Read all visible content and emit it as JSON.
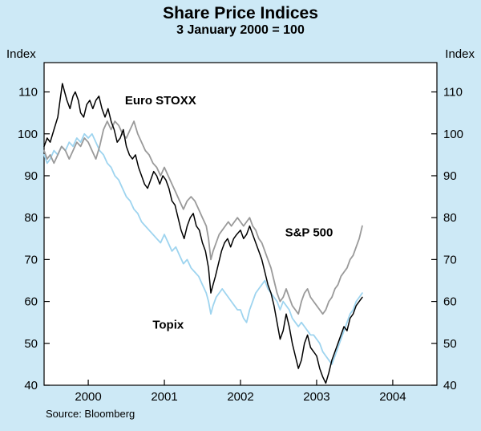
{
  "title": "Share Price Indices",
  "subtitle": "3 January 2000 = 100",
  "axis_unit_left": "Index",
  "axis_unit_right": "Index",
  "source": "Source: Bloomberg",
  "colors": {
    "background": "#cde9f6",
    "plot_background": "#ffffff",
    "frame": "#000000",
    "euro_stoxx": "#000000",
    "sp500": "#9a9a9a",
    "topix": "#9ed4ef"
  },
  "chart_data": {
    "type": "line",
    "title": "Share Price Indices",
    "subtitle": "3 January 2000 = 100",
    "xlabel": "",
    "ylabel": "Index",
    "grid": false,
    "legend_position": "inline-annotations",
    "ylim": [
      40,
      117
    ],
    "yticks": [
      40,
      50,
      60,
      70,
      80,
      90,
      100,
      110
    ],
    "xlim": [
      1999.42,
      2004.58
    ],
    "xticks": [
      2000,
      2001,
      2002,
      2003,
      2004
    ],
    "series": [
      {
        "name": "Topix",
        "color": "#9ed4ef",
        "width": 1.8,
        "points": [
          [
            1999.42,
            95
          ],
          [
            1999.46,
            93
          ],
          [
            1999.5,
            94
          ],
          [
            1999.55,
            96
          ],
          [
            1999.6,
            95
          ],
          [
            1999.65,
            97
          ],
          [
            1999.7,
            96
          ],
          [
            1999.75,
            98
          ],
          [
            1999.8,
            97
          ],
          [
            1999.85,
            99
          ],
          [
            1999.9,
            98
          ],
          [
            1999.95,
            100
          ],
          [
            2000.0,
            99
          ],
          [
            2000.05,
            100
          ],
          [
            2000.1,
            98
          ],
          [
            2000.15,
            96
          ],
          [
            2000.2,
            95
          ],
          [
            2000.25,
            93
          ],
          [
            2000.3,
            92
          ],
          [
            2000.35,
            90
          ],
          [
            2000.4,
            89
          ],
          [
            2000.45,
            87
          ],
          [
            2000.5,
            85
          ],
          [
            2000.55,
            84
          ],
          [
            2000.6,
            82
          ],
          [
            2000.65,
            81
          ],
          [
            2000.7,
            79
          ],
          [
            2000.75,
            78
          ],
          [
            2000.8,
            77
          ],
          [
            2000.85,
            76
          ],
          [
            2000.9,
            75
          ],
          [
            2000.95,
            74
          ],
          [
            2001.0,
            76
          ],
          [
            2001.05,
            74
          ],
          [
            2001.1,
            72
          ],
          [
            2001.15,
            73
          ],
          [
            2001.2,
            71
          ],
          [
            2001.25,
            69
          ],
          [
            2001.3,
            70
          ],
          [
            2001.35,
            68
          ],
          [
            2001.4,
            67
          ],
          [
            2001.45,
            66
          ],
          [
            2001.5,
            64
          ],
          [
            2001.55,
            62
          ],
          [
            2001.58,
            60
          ],
          [
            2001.61,
            57
          ],
          [
            2001.64,
            59
          ],
          [
            2001.68,
            61
          ],
          [
            2001.72,
            62
          ],
          [
            2001.76,
            63
          ],
          [
            2001.8,
            62
          ],
          [
            2001.84,
            61
          ],
          [
            2001.88,
            60
          ],
          [
            2001.92,
            59
          ],
          [
            2001.96,
            58
          ],
          [
            2002.0,
            58
          ],
          [
            2002.04,
            56
          ],
          [
            2002.08,
            55
          ],
          [
            2002.12,
            58
          ],
          [
            2002.16,
            60
          ],
          [
            2002.2,
            62
          ],
          [
            2002.24,
            63
          ],
          [
            2002.28,
            64
          ],
          [
            2002.32,
            65
          ],
          [
            2002.36,
            63
          ],
          [
            2002.4,
            62
          ],
          [
            2002.44,
            61
          ],
          [
            2002.48,
            60
          ],
          [
            2002.52,
            58
          ],
          [
            2002.56,
            60
          ],
          [
            2002.6,
            59
          ],
          [
            2002.64,
            58
          ],
          [
            2002.68,
            56
          ],
          [
            2002.72,
            55
          ],
          [
            2002.76,
            54
          ],
          [
            2002.8,
            55
          ],
          [
            2002.84,
            54
          ],
          [
            2002.88,
            53
          ],
          [
            2002.92,
            52
          ],
          [
            2002.96,
            52
          ],
          [
            2003.0,
            51
          ],
          [
            2003.04,
            50
          ],
          [
            2003.08,
            48
          ],
          [
            2003.12,
            47
          ],
          [
            2003.16,
            46
          ],
          [
            2003.2,
            45
          ],
          [
            2003.24,
            47
          ],
          [
            2003.28,
            49
          ],
          [
            2003.32,
            51
          ],
          [
            2003.36,
            53
          ],
          [
            2003.4,
            55
          ],
          [
            2003.44,
            57
          ],
          [
            2003.48,
            58
          ],
          [
            2003.52,
            60
          ],
          [
            2003.56,
            61
          ],
          [
            2003.6,
            62
          ]
        ]
      },
      {
        "name": "S&P 500",
        "color": "#9a9a9a",
        "width": 1.8,
        "points": [
          [
            1999.42,
            96
          ],
          [
            1999.46,
            94
          ],
          [
            1999.5,
            95
          ],
          [
            1999.55,
            93
          ],
          [
            1999.6,
            95
          ],
          [
            1999.65,
            97
          ],
          [
            1999.7,
            96
          ],
          [
            1999.75,
            94
          ],
          [
            1999.8,
            96
          ],
          [
            1999.85,
            98
          ],
          [
            1999.9,
            97
          ],
          [
            1999.95,
            99
          ],
          [
            2000.0,
            98
          ],
          [
            2000.05,
            96
          ],
          [
            2000.1,
            94
          ],
          [
            2000.15,
            97
          ],
          [
            2000.2,
            101
          ],
          [
            2000.25,
            103
          ],
          [
            2000.3,
            101
          ],
          [
            2000.35,
            103
          ],
          [
            2000.4,
            102
          ],
          [
            2000.45,
            100
          ],
          [
            2000.5,
            99
          ],
          [
            2000.55,
            101
          ],
          [
            2000.6,
            103
          ],
          [
            2000.65,
            100
          ],
          [
            2000.7,
            98
          ],
          [
            2000.75,
            96
          ],
          [
            2000.8,
            95
          ],
          [
            2000.85,
            93
          ],
          [
            2000.9,
            92
          ],
          [
            2000.95,
            90
          ],
          [
            2001.0,
            92
          ],
          [
            2001.05,
            90
          ],
          [
            2001.1,
            88
          ],
          [
            2001.15,
            86
          ],
          [
            2001.2,
            84
          ],
          [
            2001.25,
            82
          ],
          [
            2001.3,
            84
          ],
          [
            2001.35,
            85
          ],
          [
            2001.4,
            84
          ],
          [
            2001.45,
            82
          ],
          [
            2001.5,
            80
          ],
          [
            2001.55,
            78
          ],
          [
            2001.58,
            75
          ],
          [
            2001.61,
            70
          ],
          [
            2001.64,
            72
          ],
          [
            2001.68,
            74
          ],
          [
            2001.72,
            76
          ],
          [
            2001.76,
            77
          ],
          [
            2001.8,
            78
          ],
          [
            2001.84,
            79
          ],
          [
            2001.88,
            78
          ],
          [
            2001.92,
            79
          ],
          [
            2001.96,
            80
          ],
          [
            2002.0,
            79
          ],
          [
            2002.04,
            78
          ],
          [
            2002.08,
            79
          ],
          [
            2002.12,
            80
          ],
          [
            2002.16,
            78
          ],
          [
            2002.2,
            77
          ],
          [
            2002.24,
            75
          ],
          [
            2002.28,
            74
          ],
          [
            2002.32,
            72
          ],
          [
            2002.36,
            70
          ],
          [
            2002.4,
            68
          ],
          [
            2002.44,
            65
          ],
          [
            2002.48,
            62
          ],
          [
            2002.52,
            60
          ],
          [
            2002.56,
            61
          ],
          [
            2002.6,
            63
          ],
          [
            2002.64,
            61
          ],
          [
            2002.68,
            59
          ],
          [
            2002.72,
            58
          ],
          [
            2002.76,
            57
          ],
          [
            2002.8,
            60
          ],
          [
            2002.84,
            62
          ],
          [
            2002.88,
            63
          ],
          [
            2002.92,
            61
          ],
          [
            2002.96,
            60
          ],
          [
            2003.0,
            59
          ],
          [
            2003.04,
            58
          ],
          [
            2003.08,
            57
          ],
          [
            2003.12,
            58
          ],
          [
            2003.16,
            60
          ],
          [
            2003.2,
            61
          ],
          [
            2003.24,
            63
          ],
          [
            2003.28,
            64
          ],
          [
            2003.32,
            66
          ],
          [
            2003.36,
            67
          ],
          [
            2003.4,
            68
          ],
          [
            2003.44,
            70
          ],
          [
            2003.48,
            71
          ],
          [
            2003.52,
            73
          ],
          [
            2003.56,
            75
          ],
          [
            2003.6,
            78
          ]
        ]
      },
      {
        "name": "Euro STOXX",
        "color": "#000000",
        "width": 1.5,
        "points": [
          [
            1999.42,
            97
          ],
          [
            1999.46,
            99
          ],
          [
            1999.5,
            98
          ],
          [
            1999.55,
            101
          ],
          [
            1999.6,
            104
          ],
          [
            1999.63,
            108
          ],
          [
            1999.66,
            112
          ],
          [
            1999.69,
            110
          ],
          [
            1999.72,
            108
          ],
          [
            1999.76,
            106
          ],
          [
            1999.8,
            109
          ],
          [
            1999.83,
            110
          ],
          [
            1999.87,
            108
          ],
          [
            1999.9,
            105
          ],
          [
            1999.94,
            104
          ],
          [
            1999.98,
            107
          ],
          [
            2000.02,
            108
          ],
          [
            2000.06,
            106
          ],
          [
            2000.1,
            108
          ],
          [
            2000.14,
            109
          ],
          [
            2000.18,
            106
          ],
          [
            2000.22,
            104
          ],
          [
            2000.26,
            106
          ],
          [
            2000.3,
            103
          ],
          [
            2000.34,
            101
          ],
          [
            2000.38,
            98
          ],
          [
            2000.42,
            99
          ],
          [
            2000.46,
            101
          ],
          [
            2000.5,
            97
          ],
          [
            2000.54,
            95
          ],
          [
            2000.58,
            94
          ],
          [
            2000.62,
            95
          ],
          [
            2000.66,
            92
          ],
          [
            2000.7,
            90
          ],
          [
            2000.74,
            88
          ],
          [
            2000.78,
            87
          ],
          [
            2000.82,
            89
          ],
          [
            2000.86,
            91
          ],
          [
            2000.9,
            90
          ],
          [
            2000.94,
            88
          ],
          [
            2000.98,
            90
          ],
          [
            2001.02,
            89
          ],
          [
            2001.06,
            87
          ],
          [
            2001.1,
            84
          ],
          [
            2001.14,
            83
          ],
          [
            2001.18,
            80
          ],
          [
            2001.22,
            77
          ],
          [
            2001.26,
            75
          ],
          [
            2001.3,
            78
          ],
          [
            2001.34,
            80
          ],
          [
            2001.38,
            81
          ],
          [
            2001.42,
            78
          ],
          [
            2001.46,
            77
          ],
          [
            2001.5,
            74
          ],
          [
            2001.54,
            72
          ],
          [
            2001.58,
            68
          ],
          [
            2001.61,
            62
          ],
          [
            2001.64,
            64
          ],
          [
            2001.67,
            66
          ],
          [
            2001.71,
            69
          ],
          [
            2001.75,
            72
          ],
          [
            2001.79,
            74
          ],
          [
            2001.83,
            75
          ],
          [
            2001.87,
            73
          ],
          [
            2001.91,
            75
          ],
          [
            2001.95,
            76
          ],
          [
            2002.0,
            77
          ],
          [
            2002.04,
            75
          ],
          [
            2002.08,
            76
          ],
          [
            2002.12,
            78
          ],
          [
            2002.16,
            76
          ],
          [
            2002.2,
            74
          ],
          [
            2002.24,
            72
          ],
          [
            2002.28,
            70
          ],
          [
            2002.32,
            67
          ],
          [
            2002.36,
            64
          ],
          [
            2002.4,
            62
          ],
          [
            2002.44,
            59
          ],
          [
            2002.48,
            55
          ],
          [
            2002.52,
            51
          ],
          [
            2002.56,
            53
          ],
          [
            2002.6,
            57
          ],
          [
            2002.64,
            54
          ],
          [
            2002.68,
            50
          ],
          [
            2002.72,
            47
          ],
          [
            2002.76,
            44
          ],
          [
            2002.8,
            46
          ],
          [
            2002.84,
            50
          ],
          [
            2002.88,
            52
          ],
          [
            2002.92,
            49
          ],
          [
            2002.96,
            48
          ],
          [
            2003.0,
            47
          ],
          [
            2003.04,
            44
          ],
          [
            2003.08,
            42
          ],
          [
            2003.12,
            40.5
          ],
          [
            2003.16,
            43
          ],
          [
            2003.2,
            46
          ],
          [
            2003.24,
            48
          ],
          [
            2003.28,
            50
          ],
          [
            2003.32,
            52
          ],
          [
            2003.36,
            54
          ],
          [
            2003.4,
            53
          ],
          [
            2003.44,
            56
          ],
          [
            2003.48,
            57
          ],
          [
            2003.52,
            59
          ],
          [
            2003.56,
            60
          ],
          [
            2003.6,
            61
          ]
        ]
      }
    ],
    "annotations": [
      {
        "text": "Euro STOXX",
        "x": 2000.95,
        "y": 107
      },
      {
        "text": "S&P 500",
        "x": 2002.9,
        "y": 75.5
      },
      {
        "text": "Topix",
        "x": 2001.05,
        "y": 53.5
      }
    ],
    "source": "Source: Bloomberg"
  }
}
